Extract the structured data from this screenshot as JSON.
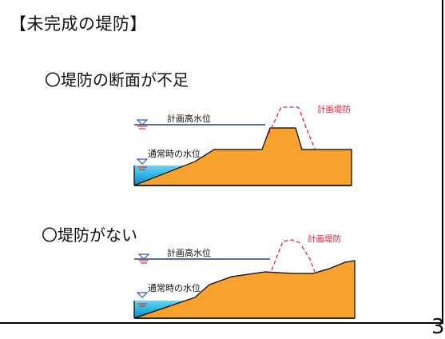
{
  "slide": {
    "title": "【未完成の堤防】",
    "page_number": "3"
  },
  "section_1": {
    "heading": "〇堤防の断面が不足",
    "labels": {
      "high_water": "計画高水位",
      "normal_water": "通常時の水位",
      "planned_levee": "計画堤防"
    }
  },
  "section_2": {
    "heading": "〇堤防がない",
    "labels": {
      "high_water": "計画高水位",
      "normal_water": "通常時の水位",
      "planned_levee": "計画堤防"
    }
  },
  "colors": {
    "embankment": "#F7A12F",
    "water": "#2BB5E0",
    "water_level_line": "#1F3D9A",
    "planned_levee": "#E8213A",
    "water_symbol_top": "#2E5FB0",
    "water_symbol_bottom": "#D9302F"
  }
}
